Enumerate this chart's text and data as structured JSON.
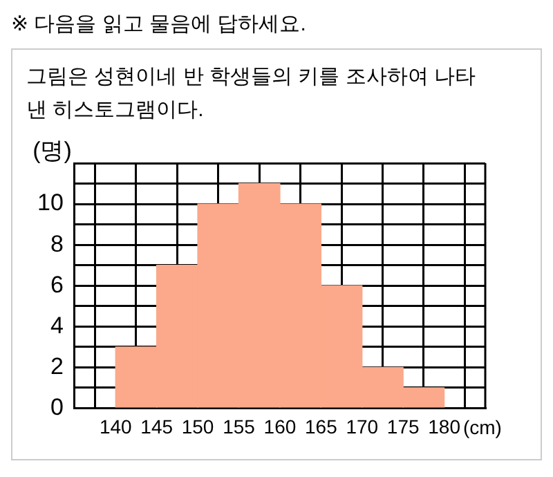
{
  "chart_data": {
    "type": "histogram",
    "title": "※ 다음을 읽고 물음에 답하세요.",
    "subtitle": "그림은 성현이네 반 학생들의 키를 조사하여 나타낸 히스토그램이다.",
    "xlabel": "(cm)",
    "ylabel": "(명)",
    "bins": [
      140,
      145,
      150,
      155,
      160,
      165,
      170,
      175,
      180
    ],
    "values": [
      3,
      7,
      10,
      11,
      10,
      6,
      2,
      1
    ],
    "color": "#fba98a",
    "xlim": [
      135,
      185
    ],
    "xticks": [
      {
        "value": 135,
        "label": null
      },
      140,
      145,
      150,
      155,
      160,
      165,
      170,
      175,
      180,
      {
        "value": 185,
        "label": null
      }
    ],
    "ylim": [
      0,
      12
    ],
    "yticks": [
      0,
      {
        "value": 1,
        "label": null
      },
      2,
      {
        "value": 3,
        "label": null
      },
      4,
      {
        "value": 5,
        "label": null
      },
      6,
      {
        "value": 7,
        "label": null
      },
      8,
      {
        "value": 9,
        "label": null
      },
      10,
      {
        "value": 11,
        "label": null
      },
      {
        "value": 12,
        "label": null
      }
    ],
    "grid": true
  }
}
